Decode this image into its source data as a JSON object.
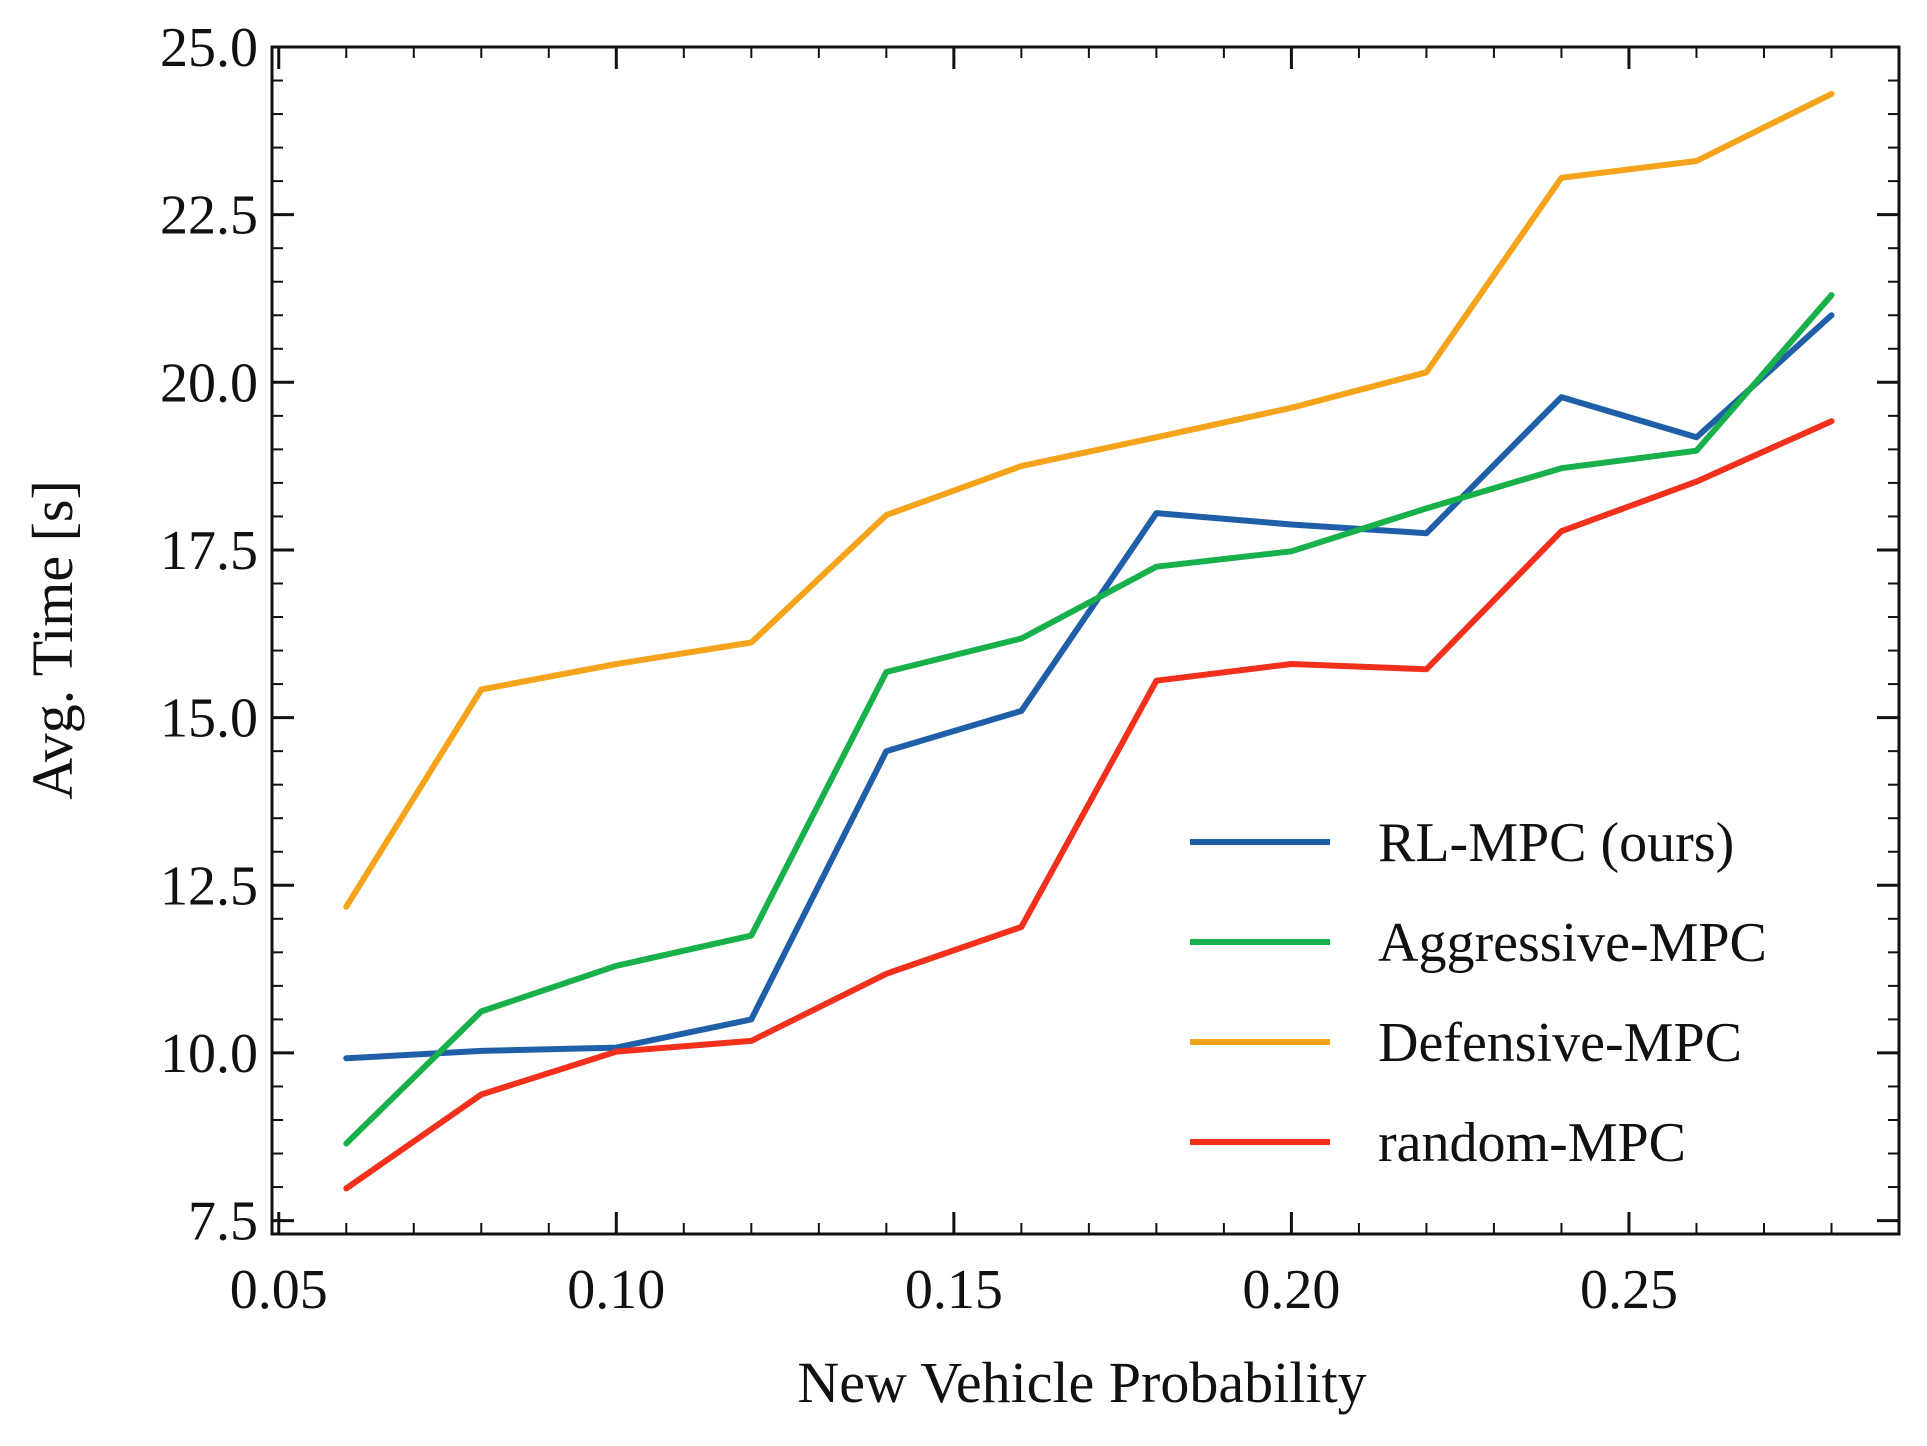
{
  "chart_data": {
    "type": "line",
    "title": "",
    "xlabel": "New Vehicle Probability",
    "ylabel": "Avg. Time [s]",
    "xlim": [
      0.049,
      0.29
    ],
    "ylim": [
      7.3,
      25.0
    ],
    "xticks": [
      "0.05",
      "0.10",
      "0.15",
      "0.20",
      "0.25"
    ],
    "yticks": [
      "7.5",
      "10.0",
      "12.5",
      "15.0",
      "17.5",
      "20.0",
      "22.5",
      "25.0"
    ],
    "x": [
      0.06,
      0.08,
      0.1,
      0.12,
      0.14,
      0.16,
      0.18,
      0.2,
      0.22,
      0.24,
      0.26,
      0.28
    ],
    "legend_position": "lower-right",
    "series": [
      {
        "name": "RL-MPC (ours)",
        "color": "#1f5fa8",
        "values": [
          9.92,
          10.03,
          10.08,
          10.5,
          14.5,
          15.1,
          18.05,
          17.88,
          17.75,
          19.78,
          19.18,
          21.0
        ]
      },
      {
        "name": "Aggressive-MPC",
        "color": "#18b04a",
        "values": [
          8.65,
          10.62,
          11.3,
          11.75,
          15.68,
          16.18,
          17.25,
          17.48,
          18.12,
          18.72,
          18.98,
          21.3
        ]
      },
      {
        "name": "Defensive-MPC",
        "color": "#f5a31a",
        "values": [
          12.18,
          15.42,
          15.8,
          16.12,
          18.02,
          18.75,
          19.18,
          19.62,
          20.15,
          23.05,
          23.3,
          24.3
        ]
      },
      {
        "name": "random-MPC",
        "color": "#f2301c",
        "values": [
          7.98,
          9.38,
          10.02,
          10.18,
          11.18,
          11.88,
          15.55,
          15.8,
          15.72,
          17.78,
          18.52,
          19.42
        ]
      }
    ]
  }
}
